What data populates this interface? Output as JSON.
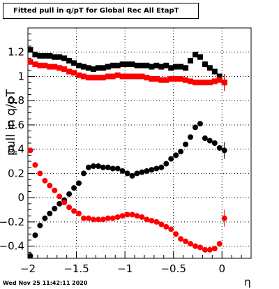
{
  "chart_data": {
    "type": "scatter",
    "title": "Fitted pull in q/pT for Global Rec All EtapT",
    "xlabel": "η",
    "ylabel": "pull in q/pT",
    "xlim": [
      -2,
      0.3
    ],
    "ylim": [
      -0.5,
      1.4
    ],
    "grid": true,
    "x_ticks": [
      "−2",
      "−1.5",
      "−1",
      "−0.5",
      "0"
    ],
    "y_ticks": [
      "−0.4",
      "−0.2",
      "0",
      "0.2",
      "0.4",
      "0.6",
      "0.8",
      "1",
      "1.2"
    ],
    "series": [
      {
        "color": "#000000",
        "marker": "square",
        "x": [
          -1.975,
          -1.925,
          -1.875,
          -1.825,
          -1.775,
          -1.725,
          -1.675,
          -1.625,
          -1.575,
          -1.525,
          -1.475,
          -1.425,
          -1.375,
          -1.325,
          -1.275,
          -1.225,
          -1.175,
          -1.125,
          -1.075,
          -1.025,
          -0.975,
          -0.925,
          -0.875,
          -0.825,
          -0.775,
          -0.725,
          -0.675,
          -0.625,
          -0.575,
          -0.525,
          -0.475,
          -0.425,
          -0.375,
          -0.325,
          -0.275,
          -0.225,
          -0.175,
          -0.125,
          -0.075,
          -0.025,
          0.025
        ],
        "y": [
          1.22,
          1.18,
          1.17,
          1.17,
          1.17,
          1.16,
          1.16,
          1.15,
          1.13,
          1.11,
          1.09,
          1.08,
          1.07,
          1.06,
          1.07,
          1.07,
          1.08,
          1.09,
          1.09,
          1.1,
          1.1,
          1.1,
          1.09,
          1.09,
          1.09,
          1.08,
          1.09,
          1.08,
          1.09,
          1.07,
          1.08,
          1.08,
          1.07,
          1.13,
          1.18,
          1.16,
          1.1,
          1.07,
          1.04,
          1.0,
          0.95
        ]
      },
      {
        "color": "#ff0000",
        "marker": "square",
        "x": [
          -1.975,
          -1.925,
          -1.875,
          -1.825,
          -1.775,
          -1.725,
          -1.675,
          -1.625,
          -1.575,
          -1.525,
          -1.475,
          -1.425,
          -1.375,
          -1.325,
          -1.275,
          -1.225,
          -1.175,
          -1.125,
          -1.075,
          -1.025,
          -0.975,
          -0.925,
          -0.875,
          -0.825,
          -0.775,
          -0.725,
          -0.675,
          -0.625,
          -0.575,
          -0.525,
          -0.475,
          -0.425,
          -0.375,
          -0.325,
          -0.275,
          -0.225,
          -0.175,
          -0.125,
          -0.075,
          -0.025,
          0.025
        ],
        "y": [
          1.12,
          1.1,
          1.09,
          1.09,
          1.08,
          1.08,
          1.07,
          1.06,
          1.04,
          1.03,
          1.01,
          1.0,
          0.99,
          0.99,
          0.99,
          0.99,
          1.0,
          1.0,
          1.01,
          1.0,
          1.0,
          1.0,
          1.0,
          1.0,
          0.99,
          0.98,
          0.98,
          0.97,
          0.97,
          0.98,
          0.98,
          0.98,
          0.97,
          0.96,
          0.95,
          0.95,
          0.95,
          0.95,
          0.96,
          0.97,
          0.95
        ]
      },
      {
        "color": "#000000",
        "marker": "circle",
        "x": [
          -1.975,
          -1.925,
          -1.875,
          -1.825,
          -1.775,
          -1.725,
          -1.675,
          -1.625,
          -1.575,
          -1.525,
          -1.475,
          -1.425,
          -1.375,
          -1.325,
          -1.275,
          -1.225,
          -1.175,
          -1.125,
          -1.075,
          -1.025,
          -0.975,
          -0.925,
          -0.875,
          -0.825,
          -0.775,
          -0.725,
          -0.675,
          -0.625,
          -0.575,
          -0.525,
          -0.475,
          -0.425,
          -0.375,
          -0.325,
          -0.275,
          -0.225,
          -0.175,
          -0.125,
          -0.075,
          -0.025,
          0.025
        ],
        "y": [
          -0.48,
          -0.31,
          -0.23,
          -0.17,
          -0.13,
          -0.09,
          -0.05,
          -0.02,
          0.03,
          0.08,
          0.12,
          0.2,
          0.25,
          0.26,
          0.26,
          0.25,
          0.25,
          0.24,
          0.24,
          0.22,
          0.2,
          0.18,
          0.2,
          0.21,
          0.22,
          0.23,
          0.24,
          0.25,
          0.28,
          0.32,
          0.35,
          0.38,
          0.44,
          0.5,
          0.58,
          0.61,
          0.49,
          0.47,
          0.45,
          0.41,
          0.39
        ]
      },
      {
        "color": "#ff0000",
        "marker": "circle",
        "x": [
          -1.975,
          -1.925,
          -1.875,
          -1.825,
          -1.775,
          -1.725,
          -1.675,
          -1.625,
          -1.575,
          -1.525,
          -1.475,
          -1.425,
          -1.375,
          -1.325,
          -1.275,
          -1.225,
          -1.175,
          -1.125,
          -1.075,
          -1.025,
          -0.975,
          -0.925,
          -0.875,
          -0.825,
          -0.775,
          -0.725,
          -0.675,
          -0.625,
          -0.575,
          -0.525,
          -0.475,
          -0.425,
          -0.375,
          -0.325,
          -0.275,
          -0.225,
          -0.175,
          -0.125,
          -0.075,
          -0.025,
          0.025
        ],
        "y": [
          0.39,
          0.27,
          0.2,
          0.14,
          0.1,
          0.06,
          0.01,
          -0.04,
          -0.08,
          -0.11,
          -0.13,
          -0.17,
          -0.17,
          -0.18,
          -0.18,
          -0.18,
          -0.17,
          -0.17,
          -0.16,
          -0.15,
          -0.14,
          -0.14,
          -0.15,
          -0.16,
          -0.18,
          -0.19,
          -0.2,
          -0.22,
          -0.24,
          -0.26,
          -0.3,
          -0.34,
          -0.36,
          -0.38,
          -0.4,
          -0.41,
          -0.43,
          -0.43,
          -0.42,
          -0.38,
          -0.17
        ]
      }
    ]
  },
  "timestamp": "Wed Nov 25 11:42:11 2020"
}
